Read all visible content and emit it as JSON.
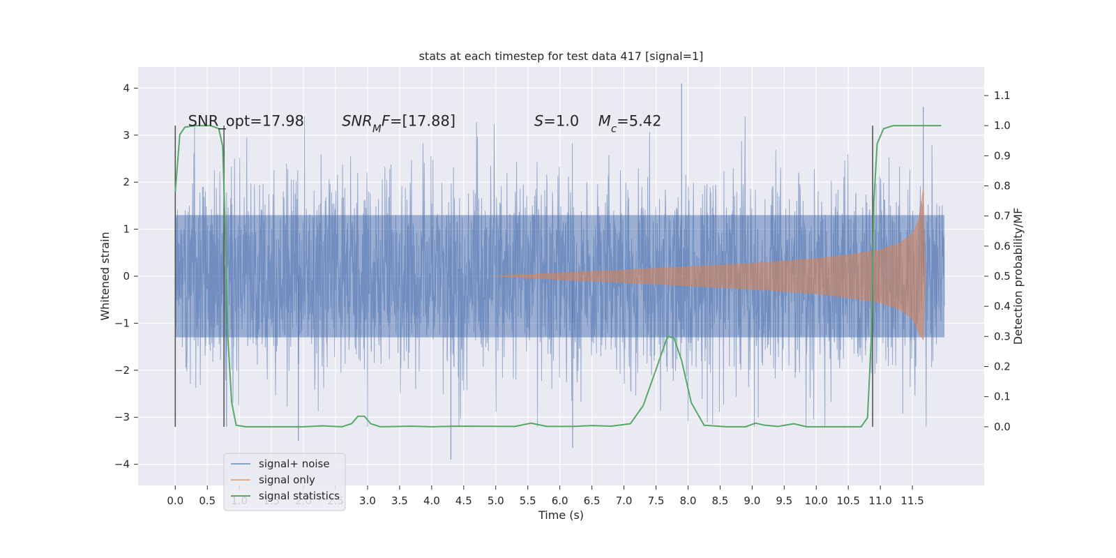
{
  "chart_data": {
    "type": "line",
    "title": "stats at each timestep for test data 417 [signal=1]",
    "xlabel": "Time (s)",
    "ylabel_left": "Whitened strain",
    "ylabel_right": "Detection probability/MF",
    "xlim": [
      -0.58,
      12.62
    ],
    "ylim_left": [
      -4.45,
      4.45
    ],
    "ylim_right": [
      -0.195,
      1.195
    ],
    "x_ticks": [
      "0.0",
      "0.5",
      "1.0",
      "1.5",
      "2.0",
      "2.5",
      "3.0",
      "3.5",
      "4.0",
      "4.5",
      "5.0",
      "5.5",
      "6.0",
      "6.5",
      "7.0",
      "7.5",
      "8.0",
      "8.5",
      "9.0",
      "9.5",
      "10.0",
      "10.5",
      "11.0",
      "11.5"
    ],
    "y_ticks_left": [
      "4",
      "3",
      "2",
      "1",
      "0",
      "−1",
      "−2",
      "−3",
      "−4"
    ],
    "y_ticks_right": [
      "1.1",
      "1.0",
      "0.9",
      "0.8",
      "0.7",
      "0.6",
      "0.5",
      "0.4",
      "0.3",
      "0.2",
      "0.1",
      "0.0"
    ],
    "grid": true,
    "legend_position": "lower-left",
    "legend": [
      "signal+ noise",
      "signal only",
      "signal statistics"
    ],
    "colors": {
      "noise": "#4c72b0",
      "signal": "#dd8452",
      "stat": "#55a868",
      "marker": "#555555",
      "bg": "#eaeaf2"
    },
    "annotations": [
      {
        "text": "SNR_opt=17.98",
        "x": 0.2,
        "y": 3.3
      },
      {
        "text": "SNR",
        "subscript": "M",
        "suffix": "F=[17.88]",
        "x": 2.6,
        "y": 3.3
      },
      {
        "text": "S",
        "suffix": "=1.0",
        "x": 5.6,
        "y": 3.3
      },
      {
        "text": "M",
        "subscript": "c",
        "suffix": "=5.42",
        "x": 6.6,
        "y": 3.3
      }
    ],
    "vertical_markers": [
      0.0,
      0.76,
      10.88
    ],
    "series": [
      {
        "name": "signal+ noise",
        "kind": "noise-band",
        "x_range": [
          0.0,
          12.0
        ],
        "band_mean": 0.0,
        "band_typical_amplitude": 1.3,
        "peak_values": [
          {
            "x": 7.9,
            "y": 4.1
          },
          {
            "x": 11.67,
            "y": 3.6
          },
          {
            "x": 4.3,
            "y": -3.9
          },
          {
            "x": 6.2,
            "y": -3.65
          },
          {
            "x": 1.92,
            "y": -3.5
          },
          {
            "x": 0.8,
            "y": -3.2
          }
        ]
      },
      {
        "name": "signal only",
        "kind": "chirp-envelope",
        "x_range": [
          5.0,
          11.7
        ],
        "envelope_points": [
          {
            "x": 5.0,
            "y": 0.0
          },
          {
            "x": 6.0,
            "y": 0.07
          },
          {
            "x": 7.0,
            "y": 0.13
          },
          {
            "x": 8.0,
            "y": 0.2
          },
          {
            "x": 9.0,
            "y": 0.27
          },
          {
            "x": 10.0,
            "y": 0.37
          },
          {
            "x": 10.5,
            "y": 0.45
          },
          {
            "x": 11.0,
            "y": 0.56
          },
          {
            "x": 11.3,
            "y": 0.7
          },
          {
            "x": 11.5,
            "y": 0.9
          },
          {
            "x": 11.6,
            "y": 1.2
          },
          {
            "x": 11.67,
            "y": 1.85
          },
          {
            "x": 11.7,
            "y": 0.0
          }
        ],
        "lower_peak": {
          "x": 11.67,
          "y": -1.35
        }
      },
      {
        "name": "signal statistics",
        "kind": "line",
        "axis": "right",
        "points": [
          {
            "x": 0.0,
            "y": 0.78
          },
          {
            "x": 0.03,
            "y": 0.86
          },
          {
            "x": 0.07,
            "y": 0.97
          },
          {
            "x": 0.15,
            "y": 0.995
          },
          {
            "x": 0.3,
            "y": 1.0
          },
          {
            "x": 0.55,
            "y": 1.0
          },
          {
            "x": 0.68,
            "y": 0.99
          },
          {
            "x": 0.74,
            "y": 0.93
          },
          {
            "x": 0.78,
            "y": 0.65
          },
          {
            "x": 0.82,
            "y": 0.3
          },
          {
            "x": 0.88,
            "y": 0.08
          },
          {
            "x": 0.95,
            "y": 0.005
          },
          {
            "x": 1.1,
            "y": 0.0
          },
          {
            "x": 2.0,
            "y": 0.0
          },
          {
            "x": 2.3,
            "y": 0.003
          },
          {
            "x": 2.6,
            "y": 0.0
          },
          {
            "x": 2.75,
            "y": 0.01
          },
          {
            "x": 2.85,
            "y": 0.035
          },
          {
            "x": 2.95,
            "y": 0.035
          },
          {
            "x": 3.05,
            "y": 0.01
          },
          {
            "x": 3.2,
            "y": 0.0
          },
          {
            "x": 3.7,
            "y": 0.002
          },
          {
            "x": 4.0,
            "y": 0.0
          },
          {
            "x": 4.4,
            "y": 0.002
          },
          {
            "x": 5.3,
            "y": 0.001
          },
          {
            "x": 5.55,
            "y": 0.012
          },
          {
            "x": 5.8,
            "y": 0.001
          },
          {
            "x": 6.2,
            "y": 0.001
          },
          {
            "x": 6.5,
            "y": 0.004
          },
          {
            "x": 6.8,
            "y": 0.002
          },
          {
            "x": 7.1,
            "y": 0.01
          },
          {
            "x": 7.3,
            "y": 0.07
          },
          {
            "x": 7.5,
            "y": 0.19
          },
          {
            "x": 7.68,
            "y": 0.3
          },
          {
            "x": 7.78,
            "y": 0.295
          },
          {
            "x": 7.9,
            "y": 0.22
          },
          {
            "x": 8.05,
            "y": 0.08
          },
          {
            "x": 8.25,
            "y": 0.005
          },
          {
            "x": 8.6,
            "y": 0.0
          },
          {
            "x": 8.9,
            "y": 0.0
          },
          {
            "x": 9.05,
            "y": 0.012
          },
          {
            "x": 9.2,
            "y": 0.005
          },
          {
            "x": 9.4,
            "y": 0.001
          },
          {
            "x": 9.65,
            "y": 0.01
          },
          {
            "x": 9.85,
            "y": 0.0
          },
          {
            "x": 10.7,
            "y": 0.0
          },
          {
            "x": 10.8,
            "y": 0.03
          },
          {
            "x": 10.86,
            "y": 0.3
          },
          {
            "x": 10.9,
            "y": 0.75
          },
          {
            "x": 10.95,
            "y": 0.94
          },
          {
            "x": 11.05,
            "y": 0.99
          },
          {
            "x": 11.2,
            "y": 1.0
          },
          {
            "x": 11.95,
            "y": 1.0
          }
        ]
      }
    ]
  }
}
